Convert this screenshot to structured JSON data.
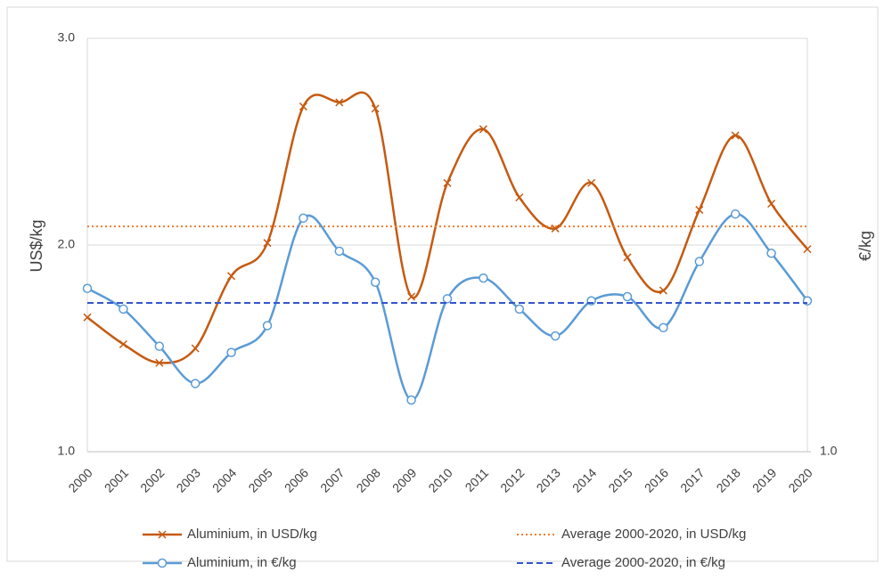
{
  "chart_data": {
    "type": "line",
    "y_label": "US$/kg",
    "y2_label": "€/kg",
    "categories": [
      "2000",
      "2001",
      "2002",
      "2003",
      "2004",
      "2005",
      "2006",
      "2007",
      "2008",
      "2009",
      "2010",
      "2011",
      "2012",
      "2013",
      "2014",
      "2015",
      "2016",
      "2017",
      "2018",
      "2019",
      "2020"
    ],
    "ylim": [
      1,
      3
    ],
    "yticks": [
      {
        "value": 1,
        "label": "1.0"
      },
      {
        "value": 2,
        "label": "2.0"
      },
      {
        "value": 3,
        "label": "3.0"
      }
    ],
    "y2lim": [
      1,
      3
    ],
    "y2ticks": [
      {
        "value": 1,
        "label": "1.0"
      }
    ],
    "grid": true,
    "smooth": true,
    "series": [
      {
        "name": "Aluminium, in USD/kg",
        "color": "#c55a11",
        "marker": "x",
        "values": [
          1.65,
          1.52,
          1.43,
          1.5,
          1.85,
          2.01,
          2.67,
          2.69,
          2.66,
          1.75,
          2.3,
          2.56,
          2.23,
          2.08,
          2.3,
          1.94,
          1.78,
          2.17,
          2.53,
          2.2,
          1.98
        ]
      },
      {
        "name": "Average 2000-2020, in USD/kg",
        "color": "#ed7d31",
        "style": "dotted",
        "value": 2.09
      },
      {
        "name": "Aluminium, in €/kg",
        "color": "#5b9bd5",
        "marker": "circle",
        "axis": "y2",
        "values": [
          1.79,
          1.69,
          1.51,
          1.33,
          1.48,
          1.61,
          2.13,
          1.97,
          1.82,
          1.25,
          1.74,
          1.84,
          1.69,
          1.56,
          1.73,
          1.75,
          1.6,
          1.92,
          2.15,
          1.96,
          1.73
        ]
      },
      {
        "name": "Average 2000-2020, in €/kg",
        "color": "#3355cc",
        "style": "dashed",
        "axis": "y2",
        "value": 1.72
      }
    ]
  }
}
